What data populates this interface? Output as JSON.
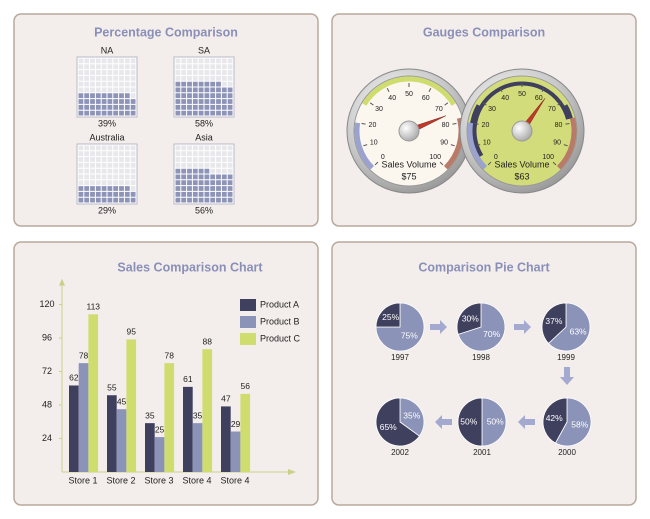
{
  "chart_data": [
    {
      "type": "waffle",
      "title": "Percentage Comparison",
      "categories": [
        "NA",
        "SA",
        "Australia",
        "Asia"
      ],
      "values": [
        39,
        58,
        29,
        56
      ],
      "value_labels": [
        "39%",
        "58%",
        "29%",
        "56%"
      ],
      "color": "#8e93b8"
    },
    {
      "type": "gauge",
      "title": "Gauges Comparison",
      "label": "Sales Volume",
      "ylim": [
        0,
        100
      ],
      "yticks": [
        0,
        10,
        20,
        30,
        40,
        50,
        60,
        70,
        80,
        90,
        100
      ],
      "values": [
        75,
        63
      ],
      "value_labels": [
        "$75",
        "$63"
      ],
      "face_colors": [
        "#fbf7ef",
        "#d3dc7a"
      ]
    },
    {
      "type": "bar",
      "title": "Sales Comparison Chart",
      "categories": [
        "Store 1",
        "Store 2",
        "Store 3",
        "Store 4",
        "Store 4"
      ],
      "series": [
        {
          "name": "Product A",
          "color": "#3f3f5e",
          "values": [
            62,
            55,
            35,
            61,
            47
          ]
        },
        {
          "name": "Product B",
          "color": "#8b93b8",
          "values": [
            78,
            45,
            25,
            35,
            29
          ]
        },
        {
          "name": "Product C",
          "color": "#cfdc6e",
          "values": [
            113,
            95,
            78,
            88,
            56
          ]
        }
      ],
      "ylim": [
        0,
        135
      ],
      "yticks": [
        24,
        48,
        72,
        96,
        120
      ],
      "legend": "top-right"
    },
    {
      "type": "pie",
      "title": "Comparison Pie Chart",
      "categories": [
        "1997",
        "1998",
        "1999",
        "2000",
        "2001",
        "2002"
      ],
      "series": [
        {
          "color": "#3f3f5e",
          "values": [
            25,
            30,
            37,
            42,
            50,
            65
          ],
          "value_labels": [
            "25%",
            "30%",
            "37%",
            "42%",
            "50%",
            "65%"
          ]
        },
        {
          "color": "#8b93b8",
          "values": [
            75,
            70,
            63,
            58,
            50,
            35
          ],
          "value_labels": [
            "75%",
            "70%",
            "63%",
            "58%",
            "50%",
            "35%"
          ]
        }
      ]
    }
  ]
}
